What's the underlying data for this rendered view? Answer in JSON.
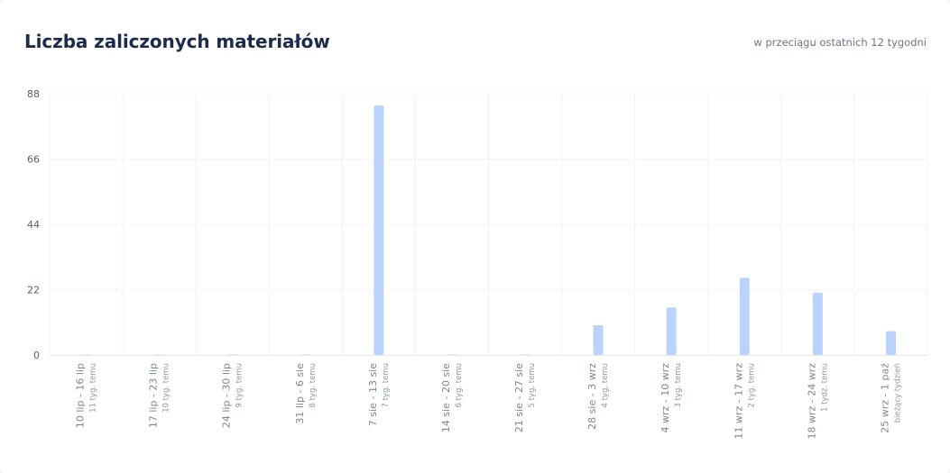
{
  "header": {
    "title": "Liczba zaliczonych materiałów",
    "subtitle": "w przeciągu ostatnich 12 tygodni"
  },
  "colors": {
    "bar": "#b9d3fc",
    "bar_zero": "#e3ebf6",
    "grid": "#ebeef2",
    "title": "#1c2b4b"
  },
  "chart_data": {
    "type": "bar",
    "title": "Liczba zaliczonych materiałów",
    "subtitle": "w przeciągu ostatnich 12 tygodni",
    "xlabel": "",
    "ylabel": "",
    "ylim": [
      0,
      88
    ],
    "yticks": [
      0,
      22,
      44,
      66,
      88
    ],
    "grid": true,
    "legend": "none",
    "categories": [
      "10 lip - 16 lip",
      "17 lip - 23 lip",
      "24 lip - 30 lip",
      "31 lip - 6 sie",
      "7 sie - 13 sie",
      "14 sie - 20 sie",
      "21 sie - 27 sie",
      "28 sie - 3 wrz",
      "4 wrz - 10 wrz",
      "11 wrz - 17 wrz",
      "18 wrz - 24 wrz",
      "25 wrz - 1 paź"
    ],
    "sublabels": [
      "11 tyg. temu",
      "10 tyg. temu",
      "9 tyg. temu",
      "8 tyg. temu",
      "7 tyg. temu",
      "6 tyg. temu",
      "5 tyg. temu",
      "4 tyg. temu",
      "3 tyg. temu",
      "2 tyg. temu",
      "1 tydz. temu",
      "bieżący tydzień"
    ],
    "values": [
      0,
      0,
      0,
      0,
      84,
      0,
      0,
      10,
      16,
      26,
      21,
      8
    ]
  }
}
